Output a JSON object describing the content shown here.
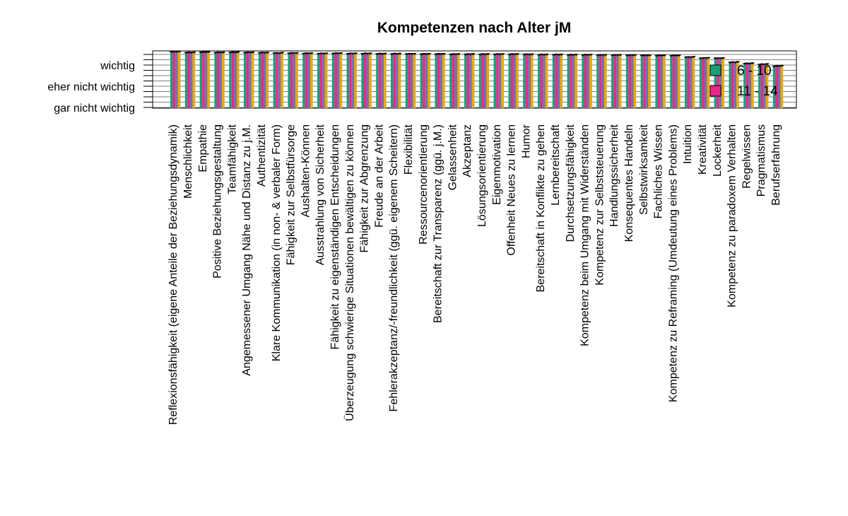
{
  "chart_data": {
    "type": "bar",
    "title": "Kompetenzen nach Alter jM",
    "xlabel": "",
    "ylabel": "",
    "y_scale": "ordinal",
    "y_tick_labels": [
      "gar nicht wichtig",
      "eher nicht wichtig",
      "wichtig"
    ],
    "ylim": [
      1,
      3.7
    ],
    "grid": false,
    "legend_position": "top-right",
    "categories": [
      "Reflexionsfähigkeit (eigene Anteile der Beziehungsdynamik)",
      "Menschlichkeit",
      "Empathie",
      "Positive Beziehungsgestaltung",
      "Teamfähigkeit",
      "Angemessener Umgang Nähe und Distanz zu j.M.",
      "Authentizität",
      "Klare Kommunikation (in non- & verbaler Form)",
      "Fähigkeit zur Selbstfürsorge",
      "Aushalten-Können",
      "Ausstrahlung von Sicherheit",
      "Fähigkeit zu eigenständigen Entscheidungen",
      "Überzeugung schwierige Situationen bewältigen zu können",
      "Fähigkeit zur Abgrenzung",
      "Freude an der Arbeit",
      "Fehlerakzeptanz/-freundlichkeit (ggü. eigenem Scheitern)",
      "Flexibilität",
      "Ressourcenorientierung",
      "Bereitschaft zur Transparenz (ggü. j.M.)",
      "Gelassenheit",
      "Akzeptanz",
      "Lösungsorientierung",
      "Eigenmotivation",
      "Offenheit Neues zu lernen",
      "Humor",
      "Bereitschaft in Konflikte zu gehen",
      "Lernbereitschaft",
      "Durchsetzungsfähigkeit",
      "Kompetenz beim Umgang mit Widerständen",
      "Kompetenz zur Selbststeuerung",
      "Handlungssicherheit",
      "Konsequentes Handeln",
      "Selbstwirksamkeit",
      "Fachliches Wissen",
      "Kompetenz zu Reframing (Umdeutung eines Problems)",
      "Intuition",
      "Kreativität",
      "Lockerheit",
      "Kompetenz zu paradoxem Verhalten",
      "Regelwissen",
      "Pragmatismus",
      "Berufserfahrung"
    ],
    "series": [
      {
        "name": "6 - 10",
        "color": "#1b9e77",
        "values": [
          3.6,
          3.56,
          3.58,
          3.56,
          3.57,
          3.56,
          3.55,
          3.54,
          3.53,
          3.52,
          3.51,
          3.52,
          3.51,
          3.51,
          3.5,
          3.5,
          3.5,
          3.49,
          3.49,
          3.48,
          3.48,
          3.48,
          3.48,
          3.48,
          3.48,
          3.46,
          3.46,
          3.45,
          3.45,
          3.44,
          3.44,
          3.44,
          3.43,
          3.42,
          3.42,
          3.35,
          3.3,
          3.3,
          3.1,
          3.05,
          3.0,
          2.92
        ]
      },
      {
        "name": "11 - 14",
        "color": "#e7298a",
        "values": [
          3.62,
          3.58,
          3.6,
          3.58,
          3.59,
          3.58,
          3.57,
          3.55,
          3.55,
          3.54,
          3.53,
          3.54,
          3.53,
          3.53,
          3.52,
          3.52,
          3.51,
          3.51,
          3.51,
          3.5,
          3.5,
          3.5,
          3.5,
          3.5,
          3.49,
          3.48,
          3.48,
          3.47,
          3.47,
          3.46,
          3.46,
          3.45,
          3.44,
          3.44,
          3.43,
          3.36,
          3.31,
          3.3,
          3.12,
          3.06,
          3.02,
          2.94
        ]
      },
      {
        "name": "",
        "color": "#7570b3",
        "values": [
          3.61,
          3.57,
          3.59,
          3.57,
          3.58,
          3.57,
          3.56,
          3.54,
          3.54,
          3.53,
          3.52,
          3.53,
          3.52,
          3.52,
          3.51,
          3.51,
          3.51,
          3.5,
          3.5,
          3.49,
          3.49,
          3.49,
          3.49,
          3.49,
          3.48,
          3.47,
          3.47,
          3.46,
          3.46,
          3.45,
          3.45,
          3.45,
          3.44,
          3.43,
          3.43,
          3.35,
          3.31,
          3.3,
          3.11,
          3.05,
          3.01,
          2.93
        ]
      },
      {
        "name": "",
        "color": "#e6ab02",
        "values": [
          3.62,
          3.58,
          3.6,
          3.58,
          3.59,
          3.58,
          3.57,
          3.56,
          3.55,
          3.54,
          3.53,
          3.54,
          3.53,
          3.53,
          3.52,
          3.52,
          3.51,
          3.51,
          3.51,
          3.5,
          3.5,
          3.5,
          3.5,
          3.5,
          3.49,
          3.48,
          3.48,
          3.47,
          3.47,
          3.46,
          3.46,
          3.45,
          3.44,
          3.44,
          3.43,
          3.37,
          3.32,
          3.31,
          3.13,
          3.07,
          3.03,
          2.95
        ]
      }
    ],
    "error_bar_halfwidth": 0.03
  },
  "legend": {
    "items": [
      {
        "label": "6 - 10",
        "color": "#1b9e77"
      },
      {
        "label": "11 - 14",
        "color": "#e7298a"
      }
    ]
  }
}
